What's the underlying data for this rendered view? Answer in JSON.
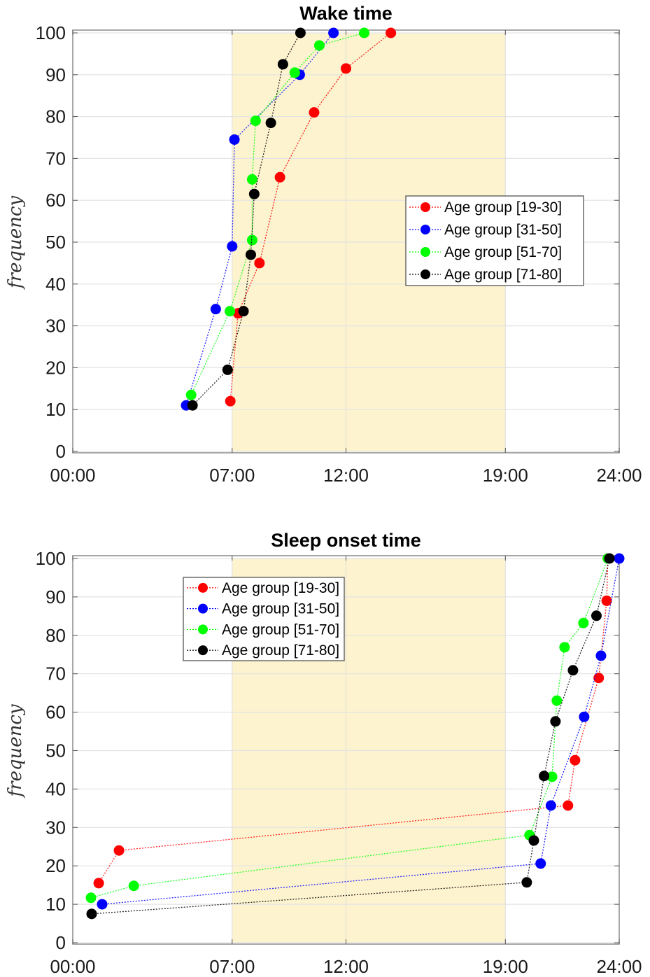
{
  "chart_data": [
    {
      "type": "line",
      "title": "Wake time",
      "xlabel": "",
      "ylabel": "frequency",
      "x_unit": "hours since 00:00",
      "xlim": [
        0,
        24
      ],
      "ylim": [
        0,
        100
      ],
      "xticks": [
        "00:00",
        "07:00",
        "12:00",
        "19:00",
        "24:00"
      ],
      "xtick_values": [
        0,
        7,
        12,
        19,
        24
      ],
      "yticks": [
        0,
        10,
        20,
        30,
        40,
        50,
        60,
        70,
        80,
        90,
        100
      ],
      "grid": true,
      "shaded_region": {
        "x_start": 7,
        "x_end": 19,
        "color": "#fdf3cf"
      },
      "legend_position": "right-middle",
      "series": [
        {
          "name": "Age group [19-30]",
          "color": "#ff0000",
          "x": [
            6.92,
            7.26,
            8.2,
            9.1,
            10.6,
            12.0,
            13.97
          ],
          "y": [
            12,
            33,
            45,
            65.5,
            81,
            91.5,
            100
          ]
        },
        {
          "name": "Age group [31-50]",
          "color": "#0000ff",
          "x": [
            4.98,
            6.28,
            7.0,
            7.1,
            9.97,
            11.45
          ],
          "y": [
            11,
            34,
            49,
            74.5,
            90,
            100
          ]
        },
        {
          "name": "Age group [51-70]",
          "color": "#00ff00",
          "x": [
            5.2,
            6.9,
            7.88,
            7.88,
            8.03,
            9.75,
            10.83,
            12.8
          ],
          "y": [
            13.5,
            33.5,
            50.5,
            65,
            79,
            90.5,
            97,
            100
          ]
        },
        {
          "name": "Age group [71-80]",
          "color": "#000000",
          "x": [
            5.26,
            6.8,
            7.5,
            7.82,
            7.97,
            8.7,
            9.23,
            10.0
          ],
          "y": [
            11,
            19.5,
            33.5,
            47,
            61.5,
            78.5,
            92.5,
            100
          ]
        }
      ]
    },
    {
      "type": "line",
      "title": "Sleep onset time",
      "xlabel": "",
      "ylabel": "frequency",
      "x_unit": "hours since 00:00",
      "xlim": [
        0,
        24
      ],
      "ylim": [
        0,
        100
      ],
      "xticks": [
        "00:00",
        "07:00",
        "12:00",
        "19:00",
        "24:00"
      ],
      "xtick_values": [
        0,
        7,
        12,
        19,
        24
      ],
      "yticks": [
        0,
        10,
        20,
        30,
        40,
        50,
        60,
        70,
        80,
        90,
        100
      ],
      "grid": true,
      "shaded_region": {
        "x_start": 7,
        "x_end": 19,
        "color": "#fdf3cf"
      },
      "legend_position": "upper-left",
      "series": [
        {
          "name": "Age group [19-30]",
          "color": "#ff0000",
          "x": [
            1.14,
            2.03,
            21.75,
            22.06,
            23.1,
            23.45,
            23.5
          ],
          "y": [
            15.5,
            24,
            35.7,
            47.5,
            68.9,
            89,
            100
          ]
        },
        {
          "name": "Age group [31-50]",
          "color": "#0000ff",
          "x": [
            1.29,
            20.55,
            21.0,
            22.46,
            23.2,
            24.0
          ],
          "y": [
            10,
            20.6,
            35.7,
            58.8,
            74.7,
            100
          ]
        },
        {
          "name": "Age group [51-70]",
          "color": "#00ff00",
          "x": [
            0.8,
            2.68,
            20.06,
            21.05,
            21.26,
            21.6,
            22.43,
            23.5
          ],
          "y": [
            11.7,
            14.8,
            28,
            43.2,
            63,
            76.9,
            83.2,
            100
          ]
        },
        {
          "name": "Age group [71-80]",
          "color": "#000000",
          "x": [
            0.83,
            19.94,
            20.25,
            20.7,
            21.2,
            21.97,
            23.0,
            23.57
          ],
          "y": [
            7.5,
            15.7,
            26.6,
            43.4,
            57.6,
            70.9,
            85.1,
            100
          ]
        }
      ]
    }
  ]
}
